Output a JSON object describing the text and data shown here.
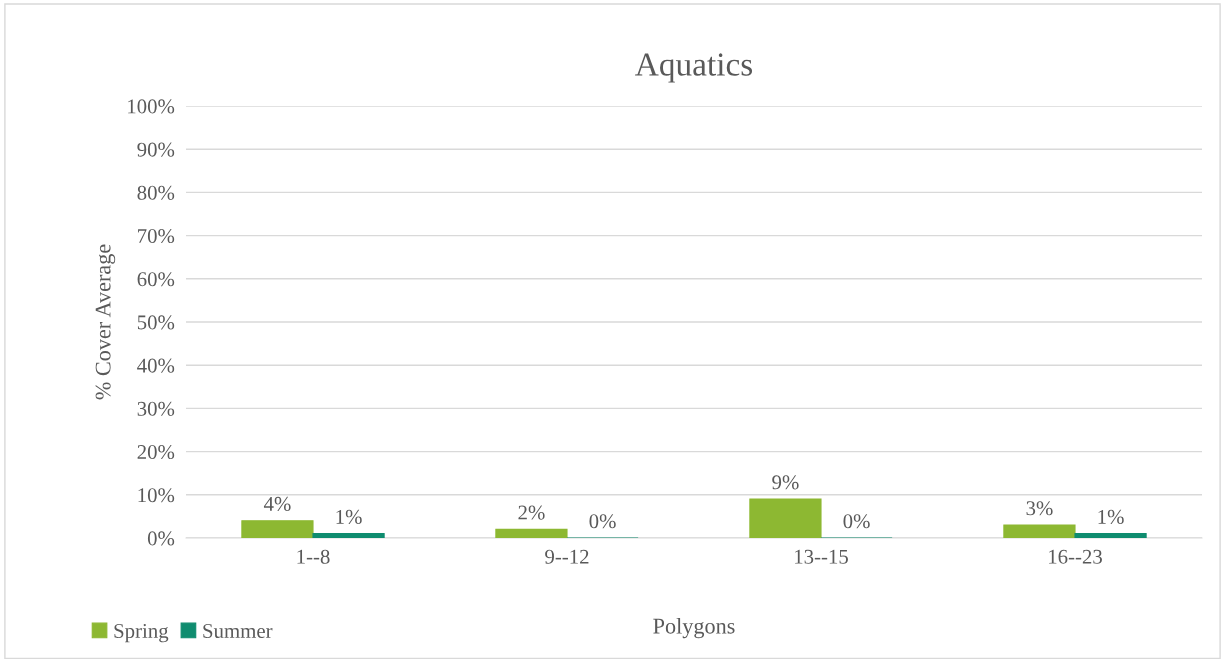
{
  "chart_data": {
    "type": "bar",
    "title": "Aquatics",
    "xlabel": "Polygons",
    "ylabel": "% Cover Average",
    "categories": [
      "1--8",
      "9--12",
      "13--15",
      "16--23"
    ],
    "series": [
      {
        "name": "Spring",
        "color": "#8db832",
        "values": [
          4,
          2,
          9,
          3
        ],
        "value_labels": [
          "4%",
          "2%",
          "9%",
          "3%"
        ]
      },
      {
        "name": "Summer",
        "color": "#0f8c6f",
        "values": [
          1,
          0,
          0,
          1
        ],
        "value_labels": [
          "1%",
          "0%",
          "0%",
          "1%"
        ]
      }
    ],
    "ylim": [
      0,
      100
    ],
    "yticks": [
      {
        "value": 0,
        "label": "0%"
      },
      {
        "value": 10,
        "label": "10%"
      },
      {
        "value": 20,
        "label": "20%"
      },
      {
        "value": 30,
        "label": "30%"
      },
      {
        "value": 40,
        "label": "40%"
      },
      {
        "value": 50,
        "label": "50%"
      },
      {
        "value": 60,
        "label": "60%"
      },
      {
        "value": 70,
        "label": "70%"
      },
      {
        "value": 80,
        "label": "80%"
      },
      {
        "value": 90,
        "label": "90%"
      },
      {
        "value": 100,
        "label": "100%"
      }
    ],
    "grid": "y",
    "legend": "bottom left"
  }
}
